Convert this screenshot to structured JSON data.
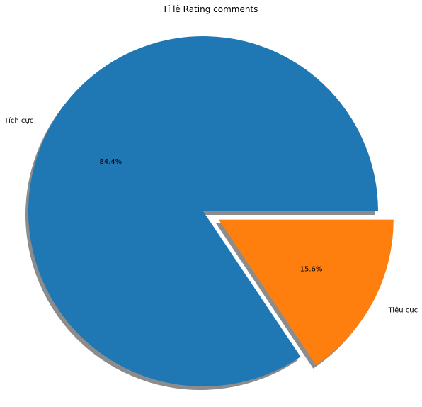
{
  "chart_data": {
    "type": "pie",
    "title": "Tỉ lệ Rating comments",
    "categories": [
      "Tích cực",
      "Tiêu cực"
    ],
    "values": [
      84.4,
      15.6
    ],
    "value_labels": [
      "84.4%",
      "15.6%"
    ],
    "explode": [
      0,
      0.1
    ],
    "shadow": true,
    "start_angle_deg": 0,
    "colors": [
      "#1f77b4",
      "#ff7f0e"
    ],
    "shadow_color": "#8c8c8c",
    "legend": "none"
  }
}
